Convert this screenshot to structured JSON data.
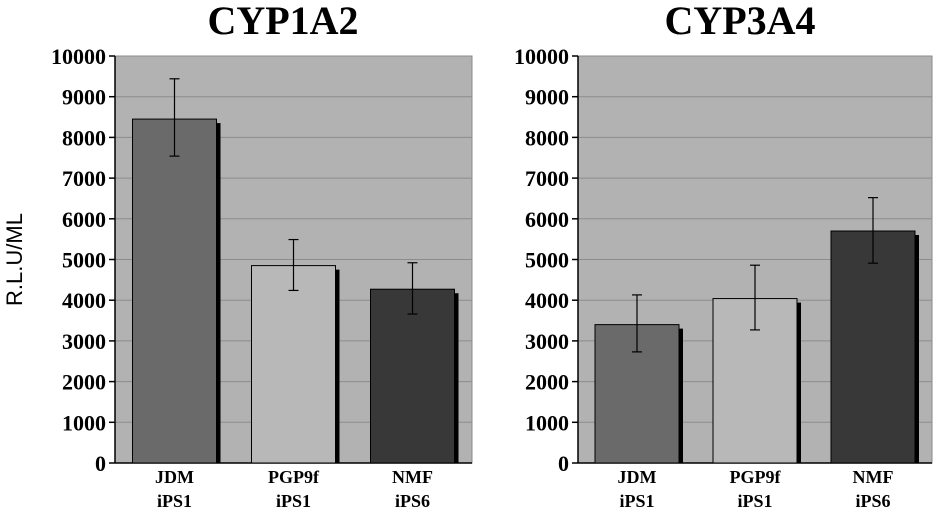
{
  "chart_data": [
    {
      "type": "bar",
      "title": "CYP1A2",
      "ylabel": "R.L.U/ML",
      "ylim": [
        0,
        10000
      ],
      "yticks": [
        "0",
        "1000",
        "2000",
        "3000",
        "4000",
        "5000",
        "6000",
        "7000",
        "8000",
        "9000",
        "10000"
      ],
      "categories": [
        [
          "JDM",
          "iPS1"
        ],
        [
          "PGP9f",
          "iPS1"
        ],
        [
          "NMF",
          "iPS6"
        ]
      ],
      "values": [
        8450,
        4850,
        4270
      ],
      "error": [
        [
          7540,
          9440
        ],
        [
          4240,
          5490
        ],
        [
          3660,
          4920
        ]
      ],
      "colors": [
        "#6a6a6a",
        "#b8b8b8",
        "#383838"
      ],
      "grid": true,
      "plot_background": "#b2b2b2"
    },
    {
      "type": "bar",
      "title": "CYP3A4",
      "ylabel": "",
      "ylim": [
        0,
        10000
      ],
      "yticks": [
        "0",
        "1000",
        "2000",
        "3000",
        "4000",
        "5000",
        "6000",
        "7000",
        "8000",
        "9000",
        "10000"
      ],
      "categories": [
        [
          "JDM",
          "iPS1"
        ],
        [
          "PGP9f",
          "iPS1"
        ],
        [
          "NMF",
          "iPS6"
        ]
      ],
      "values": [
        3400,
        4040,
        5700
      ],
      "error": [
        [
          2730,
          4130
        ],
        [
          3270,
          4860
        ],
        [
          4910,
          6520
        ]
      ],
      "colors": [
        "#6a6a6a",
        "#b8b8b8",
        "#383838"
      ],
      "grid": true,
      "plot_background": "#b2b2b2"
    }
  ]
}
